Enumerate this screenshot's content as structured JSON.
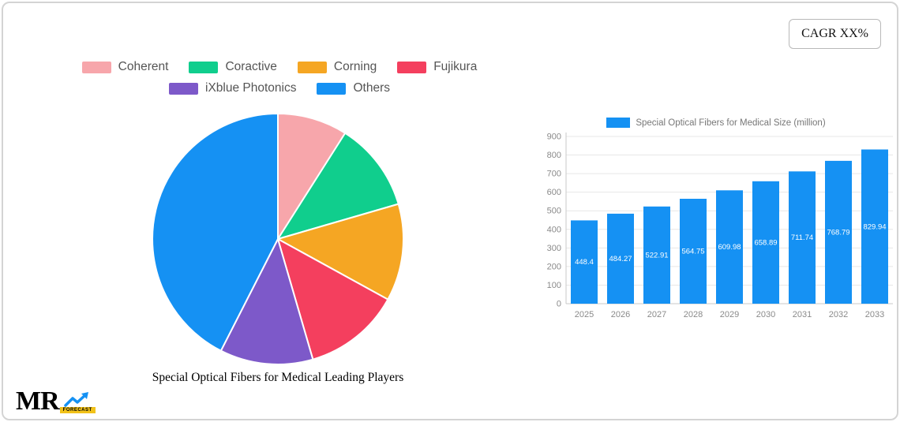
{
  "header": {
    "cagr_label": "CAGR XX%"
  },
  "chart_data": [
    {
      "type": "pie",
      "title": "Special Optical Fibers for Medical Leading Players",
      "legend_position": "top",
      "labels": [
        "Coherent",
        "Coractive",
        "Corning",
        "Fujikura",
        "iXblue Photonics",
        "Others"
      ],
      "values_estimated_percent": [
        9,
        11.5,
        12.5,
        12.5,
        12,
        42.5
      ],
      "colors": [
        "#f7a6ab",
        "#10ce8d",
        "#f5a623",
        "#f43f5e",
        "#7d59c9",
        "#1591f3"
      ]
    },
    {
      "type": "bar",
      "title": "Special Optical Fibers for Medical Size (million)",
      "legend_position": "top",
      "categories": [
        "2025",
        "2026",
        "2027",
        "2028",
        "2029",
        "2030",
        "2031",
        "2032",
        "2033"
      ],
      "values": [
        448.4,
        484.27,
        522.91,
        564.75,
        609.98,
        658.89,
        711.74,
        768.79,
        829.94
      ],
      "bar_labels": [
        "448.4",
        "484.27",
        "522.91",
        "564.75",
        "609.98",
        "658.89",
        "711.74",
        "768.79",
        "829.94"
      ],
      "color": "#1591f3",
      "ylim": [
        0,
        900
      ],
      "yticks": [
        0,
        100,
        200,
        300,
        400,
        500,
        600,
        700,
        800,
        900
      ],
      "grid": true
    }
  ],
  "logo": {
    "brand": "MR",
    "tag": "FORECAST"
  }
}
